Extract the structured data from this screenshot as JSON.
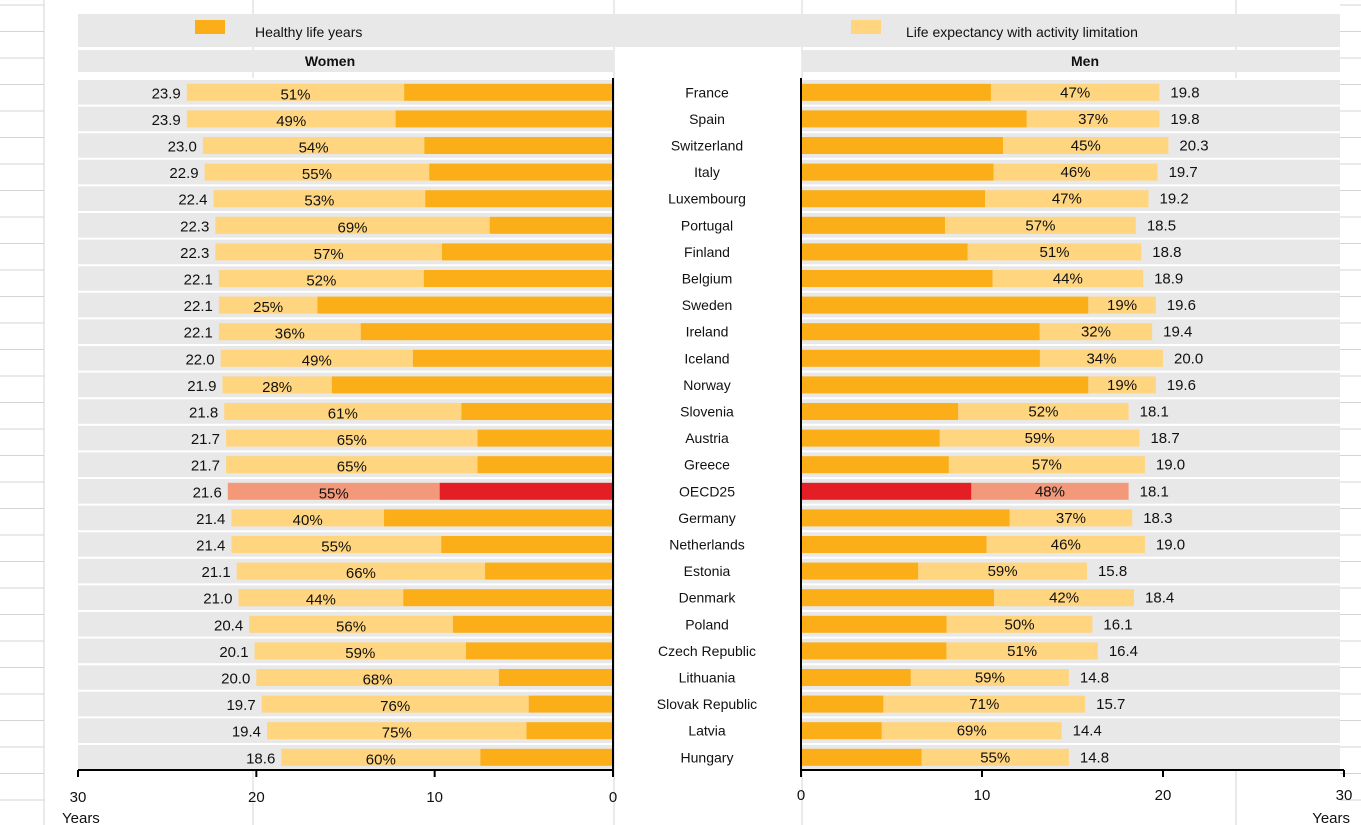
{
  "chart_data": {
    "type": "bar",
    "orientation": "horizontal",
    "layout": "butterfly",
    "legend": {
      "position": "top",
      "entries": [
        {
          "label": "Healthy life years",
          "color": "#FBAE17"
        },
        {
          "label": "Life expectancy with activity limitation",
          "color": "#FFD580"
        }
      ]
    },
    "highlight": {
      "category": "OECD25",
      "healthy_color": "#E31E24",
      "limitation_color": "#F4987A"
    },
    "axis": {
      "women": {
        "ticks": [
          "30",
          "20",
          "10",
          "0"
        ],
        "min": 0,
        "max": 30,
        "reversed": true,
        "unit": "Years"
      },
      "men": {
        "ticks": [
          "0",
          "10",
          "20",
          "30"
        ],
        "min": 0,
        "max": 30,
        "unit": "Years"
      }
    },
    "panels": {
      "women": "Women",
      "men": "Men"
    },
    "categories": [
      "France",
      "Spain",
      "Switzerland",
      "Italy",
      "Luxembourg",
      "Portugal",
      "Finland",
      "Belgium",
      "Sweden",
      "Ireland",
      "Iceland",
      "Norway",
      "Slovenia",
      "Austria",
      "Greece",
      "OECD25",
      "Germany",
      "Netherlands",
      "Estonia",
      "Denmark",
      "Poland",
      "Czech Republic",
      "Lithuania",
      "Slovak Republic",
      "Latvia",
      "Hungary"
    ],
    "series": [
      {
        "name": "Women",
        "total": [
          "23.9",
          "23.9",
          "23.0",
          "22.9",
          "22.4",
          "22.3",
          "22.3",
          "22.1",
          "22.1",
          "22.1",
          "22.0",
          "21.9",
          "21.8",
          "21.7",
          "21.7",
          "21.6",
          "21.4",
          "21.4",
          "21.1",
          "21.0",
          "20.4",
          "20.1",
          "20.0",
          "19.7",
          "19.4",
          "18.6"
        ],
        "limitation_share": [
          "51%",
          "49%",
          "54%",
          "55%",
          "53%",
          "69%",
          "57%",
          "52%",
          "25%",
          "36%",
          "49%",
          "28%",
          "61%",
          "65%",
          "65%",
          "55%",
          "40%",
          "55%",
          "66%",
          "44%",
          "56%",
          "59%",
          "68%",
          "76%",
          "75%",
          "60%"
        ]
      },
      {
        "name": "Men",
        "total": [
          "19.8",
          "19.8",
          "20.3",
          "19.7",
          "19.2",
          "18.5",
          "18.8",
          "18.9",
          "19.6",
          "19.4",
          "20.0",
          "19.6",
          "18.1",
          "18.7",
          "19.0",
          "18.1",
          "18.3",
          "19.0",
          "15.8",
          "18.4",
          "16.1",
          "16.4",
          "14.8",
          "15.7",
          "14.4",
          "14.8"
        ],
        "limitation_share": [
          "47%",
          "37%",
          "45%",
          "46%",
          "47%",
          "57%",
          "51%",
          "44%",
          "19%",
          "32%",
          "34%",
          "19%",
          "52%",
          "59%",
          "57%",
          "48%",
          "37%",
          "46%",
          "59%",
          "42%",
          "50%",
          "51%",
          "59%",
          "71%",
          "69%",
          "55%"
        ]
      }
    ]
  }
}
